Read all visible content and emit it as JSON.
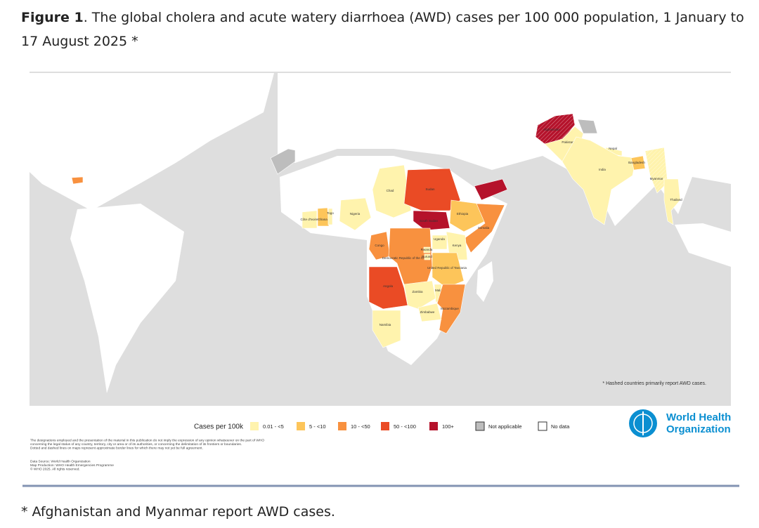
{
  "caption": {
    "label": "Figure 1",
    "text": ". The global cholera and acute watery diarrhoea (AWD) cases per 100 000 population, 1 January to 17 August 2025 *"
  },
  "map": {
    "note": "* Hashed countries primarily report AWD cases.",
    "legend": {
      "title": "Cases per 100k",
      "items": [
        {
          "label": "0.01 - <5",
          "color": "#fff3ad"
        },
        {
          "label": "5 - <10",
          "color": "#fdc55a"
        },
        {
          "label": "10 - <50",
          "color": "#f8913f"
        },
        {
          "label": "50 - <100",
          "color": "#ea4b25"
        },
        {
          "label": "100+",
          "color": "#b5122b"
        },
        {
          "label": "Not applicable",
          "color": "#bdbdbd"
        },
        {
          "label": "No data",
          "color": "#ffffff"
        }
      ]
    },
    "countries": [
      {
        "name": "Chad",
        "level": 0
      },
      {
        "name": "Sudan",
        "level": 3
      },
      {
        "name": "South Sudan",
        "level": 4
      },
      {
        "name": "Ethiopia",
        "level": 1
      },
      {
        "name": "Somalia",
        "level": 2
      },
      {
        "name": "Kenya",
        "level": 0
      },
      {
        "name": "Uganda",
        "level": 0
      },
      {
        "name": "Nigeria",
        "level": 0
      },
      {
        "name": "Ghana",
        "level": 1
      },
      {
        "name": "Togo",
        "level": 0
      },
      {
        "name": "Côte d'Ivoire",
        "level": 0
      },
      {
        "name": "Congo",
        "level": 2
      },
      {
        "name": "Democratic Republic of the Congo",
        "level": 2
      },
      {
        "name": "Rwanda",
        "level": 0
      },
      {
        "name": "Burundi",
        "level": 0
      },
      {
        "name": "United Republic of Tanzania",
        "level": 1
      },
      {
        "name": "Angola",
        "level": 3
      },
      {
        "name": "Zambia",
        "level": 0
      },
      {
        "name": "Malawi",
        "level": 0
      },
      {
        "name": "Mozambique",
        "level": 2
      },
      {
        "name": "Zimbabwe",
        "level": 0
      },
      {
        "name": "Namibia",
        "level": 0
      },
      {
        "name": "Afghanistan",
        "level": 4,
        "hashed": true
      },
      {
        "name": "Pakistan",
        "level": 0
      },
      {
        "name": "Nepal",
        "level": 0
      },
      {
        "name": "India",
        "level": 0
      },
      {
        "name": "Bangladesh",
        "level": 1
      },
      {
        "name": "Myanmar",
        "level": 0,
        "hashed": true
      },
      {
        "name": "Thailand",
        "level": 0
      },
      {
        "name": null,
        "level": 4
      },
      {
        "name": null,
        "level": 2
      },
      {
        "name": null,
        "level": 5
      },
      {
        "name": null,
        "level": 5
      }
    ],
    "disclaimer": [
      "The designations employed and the presentation of the material in this publication do not imply the expression of any opinion whatsoever on the part of WHO",
      "concerning the legal status of any country, territory, city or area or of its authorities, or concerning the delimitation of its frontiers or boundaries.",
      "Dotted and dashed lines on maps represent approximate border lines for which there may not yet be full agreement."
    ],
    "source": [
      "Data Source: World Health Organization",
      "Map Production: WHO Health Emergencies Programme",
      "© WHO 2025. All rights reserved."
    ],
    "logo": [
      "World Health",
      "Organization"
    ]
  },
  "footnote": "* Afghanistan and Myanmar report AWD cases."
}
